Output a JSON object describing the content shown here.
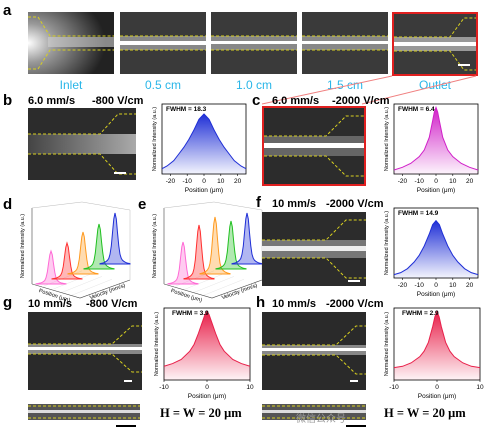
{
  "figure": {
    "panel_letters": {
      "a": "a",
      "b": "b",
      "c": "c",
      "d": "d",
      "e": "e",
      "f": "f",
      "g": "g",
      "h": "h"
    },
    "row_a_labels": [
      "Inlet",
      "0.5 cm",
      "1.0 cm",
      "1.5 cm",
      "Outlet"
    ],
    "conditions": {
      "b": {
        "speed": "6.0 mm/s",
        "field": "-800 V/cm"
      },
      "c": {
        "speed": "6.0 mm/s",
        "field": "-2000 V/cm"
      },
      "f": {
        "speed": "10 mm/s",
        "field": "-2000 V/cm"
      },
      "g": {
        "speed": "10 mm/s",
        "field": "-800 V/cm"
      },
      "h": {
        "speed": "10 mm/s",
        "field": "-2000 V/cm"
      }
    },
    "equation_label": "H = W = 20 μm",
    "watermark": "微信公众号",
    "colors": {
      "highlight_border": "#e02020",
      "connector": "#f08080",
      "dash": "#d8d020"
    }
  },
  "chart_data": [
    {
      "panel": "b",
      "type": "area",
      "fwhm_label": "FWHM = 18.3",
      "fwhm": 18.3,
      "color": "#1f2fd6",
      "xlabel": "Position (μm)",
      "ylabel": "Normalized Intensity (a.u.)",
      "xlim": [
        -25,
        25
      ],
      "xticks": [
        -20,
        -10,
        0,
        10,
        20
      ],
      "ylim": [
        0,
        1.05
      ],
      "x": [
        -25,
        -22,
        -18,
        -15,
        -12,
        -9,
        -6,
        -3,
        0,
        3,
        6,
        9,
        12,
        15,
        18,
        22,
        25
      ],
      "y": [
        0.08,
        0.12,
        0.2,
        0.3,
        0.4,
        0.52,
        0.66,
        0.82,
        0.9,
        0.82,
        0.66,
        0.52,
        0.4,
        0.3,
        0.2,
        0.12,
        0.08
      ]
    },
    {
      "panel": "c",
      "type": "area",
      "fwhm_label": "FWHM = 6.4",
      "fwhm": 6.4,
      "color": "#d020c8",
      "xlabel": "Position (μm)",
      "ylabel": "Normalized Intensity (a.u.)",
      "xlim": [
        -25,
        25
      ],
      "xticks": [
        -20,
        -10,
        0,
        10,
        20
      ],
      "ylim": [
        0,
        1.05
      ],
      "x": [
        -25,
        -20,
        -15,
        -10,
        -7,
        -4,
        -2,
        -1,
        0,
        1,
        2,
        4,
        7,
        10,
        15,
        20,
        25
      ],
      "y": [
        0.06,
        0.1,
        0.16,
        0.26,
        0.36,
        0.55,
        0.8,
        0.93,
        1.0,
        0.93,
        0.8,
        0.55,
        0.36,
        0.26,
        0.16,
        0.1,
        0.06
      ]
    },
    {
      "panel": "f",
      "type": "area",
      "fwhm_label": "FWHM = 14.9",
      "fwhm": 14.9,
      "color": "#1f2fd6",
      "xlabel": "Position (μm)",
      "ylabel": "Normalized Intensity (a.u.)",
      "xlim": [
        -25,
        25
      ],
      "xticks": [
        -20,
        -10,
        0,
        10,
        20
      ],
      "ylim": [
        0,
        1.05
      ],
      "x": [
        -25,
        -21,
        -17,
        -13,
        -10,
        -7,
        -4,
        -2,
        0,
        2,
        4,
        7,
        10,
        13,
        17,
        21,
        25
      ],
      "y": [
        0.05,
        0.08,
        0.14,
        0.24,
        0.34,
        0.48,
        0.66,
        0.8,
        0.86,
        0.8,
        0.66,
        0.48,
        0.34,
        0.24,
        0.14,
        0.08,
        0.05
      ]
    },
    {
      "panel": "g",
      "type": "area",
      "fwhm_label": "FWHM = 3.9",
      "fwhm": 3.9,
      "color": "#e8204a",
      "xlabel": "Position (μm)",
      "ylabel": "Normalized Intensity (a.u.)",
      "xlim": [
        -10,
        10
      ],
      "xticks": [
        -10,
        0,
        10
      ],
      "ylim": [
        0,
        1.05
      ],
      "x": [
        -10,
        -8,
        -6,
        -4,
        -3,
        -2,
        -1,
        -0.5,
        0,
        0.5,
        1,
        2,
        3,
        4,
        6,
        8,
        10
      ],
      "y": [
        0.2,
        0.24,
        0.3,
        0.42,
        0.52,
        0.68,
        0.86,
        0.95,
        1.0,
        0.95,
        0.86,
        0.68,
        0.52,
        0.42,
        0.3,
        0.24,
        0.2
      ]
    },
    {
      "panel": "h",
      "type": "area",
      "fwhm_label": "FWHM = 2.9",
      "fwhm": 2.9,
      "color": "#e8204a",
      "xlabel": "Position (μm)",
      "ylabel": "Normalized Intensity (a.u.)",
      "xlim": [
        -10,
        10
      ],
      "xticks": [
        -10,
        0,
        10
      ],
      "ylim": [
        0,
        1.05
      ],
      "x": [
        -10,
        -8,
        -6,
        -4,
        -3,
        -2,
        -1,
        -0.5,
        0,
        0.5,
        1,
        2,
        3,
        4,
        6,
        8,
        10
      ],
      "y": [
        0.18,
        0.2,
        0.25,
        0.34,
        0.42,
        0.55,
        0.78,
        0.92,
        1.0,
        0.92,
        0.78,
        0.55,
        0.42,
        0.34,
        0.25,
        0.2,
        0.18
      ]
    },
    {
      "panel": "d",
      "type": "line",
      "view": "3d-waterfall",
      "xlabel": "Position (μm)",
      "ylabel": "Velocity (mm/s)",
      "zlabel": "Normalized Intensity (a.u.)",
      "series": [
        {
          "color": "#ff6ad5",
          "peak": 0.55
        },
        {
          "color": "#ff3030",
          "peak": 0.6
        },
        {
          "color": "#ff9a20",
          "peak": 0.7
        },
        {
          "color": "#20c020",
          "peak": 0.75
        },
        {
          "color": "#1f2fd6",
          "peak": 0.85
        }
      ]
    },
    {
      "panel": "e",
      "type": "line",
      "view": "3d-waterfall",
      "xlabel": "Position (μm)",
      "ylabel": "Velocity (mm/s)",
      "zlabel": "Normalized Intensity (a.u.)",
      "series": [
        {
          "color": "#ff6ad5",
          "peak": 0.7
        },
        {
          "color": "#ff3030",
          "peak": 0.9
        },
        {
          "color": "#ff9a20",
          "peak": 0.95
        },
        {
          "color": "#20c020",
          "peak": 0.8
        },
        {
          "color": "#1f2fd6",
          "peak": 0.85
        }
      ]
    }
  ]
}
